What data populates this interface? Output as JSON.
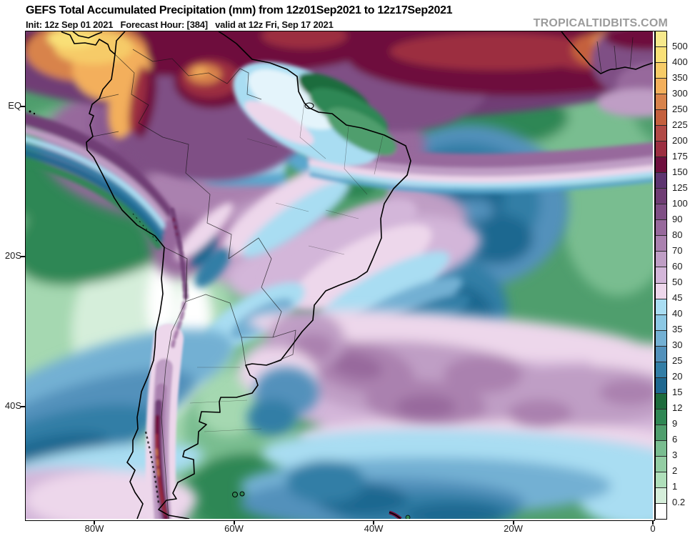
{
  "header": {
    "title": "GEFS Total Accumulated Precipitation (mm) from 12z01Sep2021 to 12z17Sep2021",
    "subtitle": "Init: 12z Sep 01 2021   Forecast Hour: [384]   valid at 12z Fri, Sep 17 2021",
    "watermark": "TROPICALTIDBITS.COM"
  },
  "axes": {
    "y_ticks": [
      "EQ",
      "20S",
      "40S"
    ],
    "x_ticks": [
      "80W",
      "60W",
      "40W",
      "20W",
      "0"
    ]
  },
  "colorbar": {
    "units": "mm",
    "segments": [
      {
        "color": "#F7E98C",
        "label_below": "500"
      },
      {
        "color": "#F9E077",
        "label_below": "400"
      },
      {
        "color": "#F6CB67",
        "label_below": "350"
      },
      {
        "color": "#F3AF5B",
        "label_below": "300"
      },
      {
        "color": "#D8834C",
        "label_below": "250"
      },
      {
        "color": "#C4603E",
        "label_below": "225"
      },
      {
        "color": "#B14A46",
        "label_below": "200"
      },
      {
        "color": "#9C2F41",
        "label_below": "175"
      },
      {
        "color": "#6E0F3E",
        "label_below": "150"
      },
      {
        "color": "#5D3470",
        "label_below": "125"
      },
      {
        "color": "#6F3D74",
        "label_below": "100"
      },
      {
        "color": "#7F4F85",
        "label_below": "90"
      },
      {
        "color": "#97699C",
        "label_below": "80"
      },
      {
        "color": "#AA81AF",
        "label_below": "70"
      },
      {
        "color": "#BF9EC5",
        "label_below": "60"
      },
      {
        "color": "#D3B6D9",
        "label_below": "50"
      },
      {
        "color": "#EDD7EB",
        "label_below": "45"
      },
      {
        "color": "#A9DDF2",
        "label_below": "40"
      },
      {
        "color": "#8CC8E4",
        "label_below": "35"
      },
      {
        "color": "#73B0D3",
        "label_below": "30"
      },
      {
        "color": "#5291BB",
        "label_below": "25"
      },
      {
        "color": "#337EA6",
        "label_below": "20"
      },
      {
        "color": "#1F6890",
        "label_below": "15"
      },
      {
        "color": "#1E6C3D",
        "label_below": "12"
      },
      {
        "color": "#2F8754",
        "label_below": "9"
      },
      {
        "color": "#4F9E6D",
        "label_below": "6"
      },
      {
        "color": "#79BD90",
        "label_below": "3"
      },
      {
        "color": "#93CDA3",
        "label_below": "2"
      },
      {
        "color": "#AFDFBA",
        "label_below": "1"
      },
      {
        "color": "#D5EEDA",
        "label_below": "0.2"
      },
      {
        "color": "#FFFFFF",
        "label_below": ""
      }
    ]
  }
}
